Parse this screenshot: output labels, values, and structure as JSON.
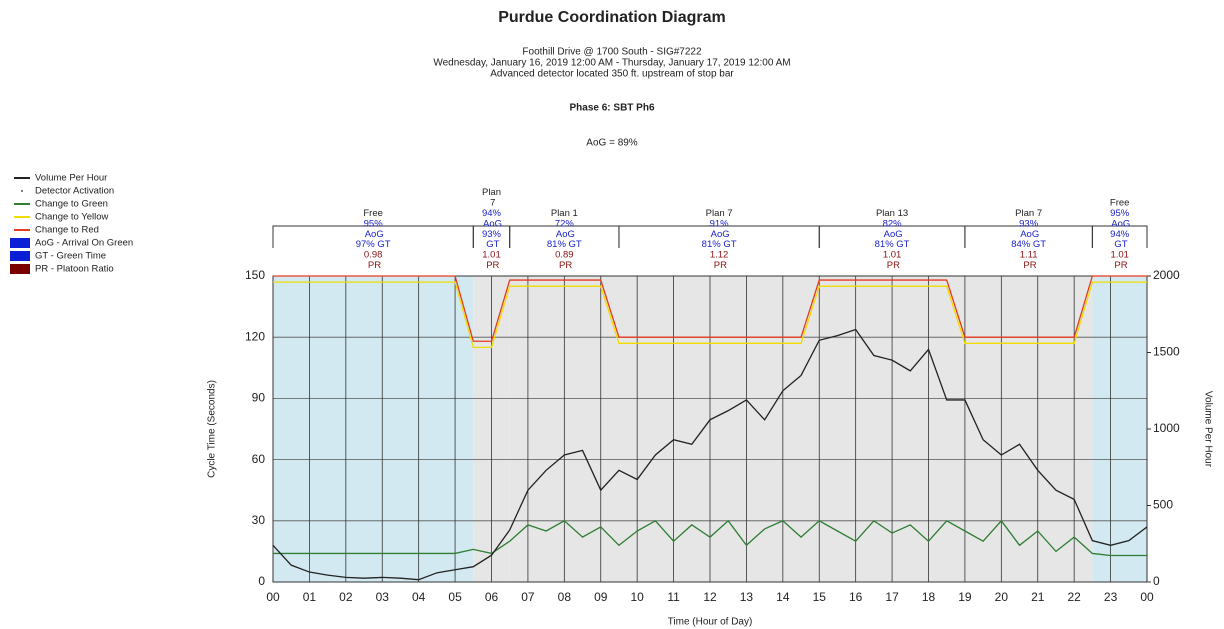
{
  "chart_data": {
    "type": "line",
    "title": "Purdue Coordination Diagram",
    "subtitle": [
      "Foothill Drive @ 1700 South - SIG#7222",
      "Wednesday, January 16, 2019 12:00 AM - Thursday, January 17, 2019 12:00 AM",
      "Advanced detector located 350 ft. upstream of stop bar"
    ],
    "phase": "Phase 6: SBT Ph6",
    "summary": "AoG = 89%",
    "xlabel": "Time (Hour of Day)",
    "ylabel": "Cycle Time (Seconds)",
    "y2label": "Volume Per Hour",
    "xlim": [
      0,
      24
    ],
    "xticks": [
      {
        "value": 0,
        "label": "00"
      },
      {
        "value": 1,
        "label": "01"
      },
      {
        "value": 2,
        "label": "02"
      },
      {
        "value": 3,
        "label": "03"
      },
      {
        "value": 4,
        "label": "04"
      },
      {
        "value": 5,
        "label": "05"
      },
      {
        "value": 6,
        "label": "06"
      },
      {
        "value": 7,
        "label": "07"
      },
      {
        "value": 8,
        "label": "08"
      },
      {
        "value": 9,
        "label": "09"
      },
      {
        "value": 10,
        "label": "10"
      },
      {
        "value": 11,
        "label": "11"
      },
      {
        "value": 12,
        "label": "12"
      },
      {
        "value": 13,
        "label": "13"
      },
      {
        "value": 14,
        "label": "14"
      },
      {
        "value": 15,
        "label": "15"
      },
      {
        "value": 16,
        "label": "16"
      },
      {
        "value": 17,
        "label": "17"
      },
      {
        "value": 18,
        "label": "18"
      },
      {
        "value": 19,
        "label": "19"
      },
      {
        "value": 20,
        "label": "20"
      },
      {
        "value": 21,
        "label": "21"
      },
      {
        "value": 22,
        "label": "22"
      },
      {
        "value": 23,
        "label": "23"
      },
      {
        "value": 24,
        "label": "00"
      }
    ],
    "ylim": [
      0,
      150
    ],
    "yticks": [
      0,
      30,
      60,
      90,
      120,
      150
    ],
    "y2lim": [
      0,
      2000
    ],
    "y2ticks": [
      0,
      500,
      1000,
      1500,
      2000
    ],
    "grid": true,
    "x": [
      0,
      0.5,
      1,
      1.5,
      2,
      2.5,
      3,
      3.5,
      4,
      4.5,
      5,
      5.5,
      6,
      6.5,
      7,
      7.5,
      8,
      8.5,
      9,
      9.5,
      10,
      10.5,
      11,
      11.5,
      12,
      12.5,
      13,
      13.5,
      14,
      14.5,
      15,
      15.5,
      16,
      16.5,
      17,
      17.5,
      18,
      18.5,
      19,
      19.5,
      20,
      20.5,
      21,
      21.5,
      22,
      22.5,
      23,
      23.5,
      24
    ],
    "series": [
      {
        "name": "Volume Per Hour",
        "color": "#222222",
        "axis": "y2",
        "values": [
          240,
          110,
          65,
          45,
          30,
          25,
          30,
          25,
          15,
          60,
          80,
          100,
          175,
          340,
          600,
          730,
          830,
          860,
          600,
          730,
          670,
          830,
          930,
          900,
          1060,
          1120,
          1190,
          1060,
          1250,
          1350,
          1580,
          1610,
          1650,
          1480,
          1450,
          1380,
          1520,
          1190,
          1190,
          930,
          830,
          900,
          730,
          600,
          540,
          270,
          240,
          270,
          360
        ]
      },
      {
        "name": "Change to Green",
        "color": "#2e7d32",
        "values": [
          14,
          14,
          14,
          14,
          14,
          14,
          14,
          14,
          14,
          14,
          14,
          16,
          14,
          20,
          28,
          25,
          30,
          22,
          27,
          18,
          25,
          30,
          20,
          28,
          22,
          30,
          18,
          26,
          30,
          22,
          30,
          25,
          20,
          30,
          24,
          28,
          20,
          30,
          25,
          20,
          30,
          18,
          25,
          15,
          22,
          14,
          13,
          13,
          13
        ]
      },
      {
        "name": "Change to Yellow",
        "color": "#f0dc00",
        "values": [
          147,
          147,
          147,
          147,
          147,
          147,
          147,
          147,
          147,
          147,
          147,
          115,
          115,
          145,
          145,
          145,
          145,
          145,
          145,
          117,
          117,
          117,
          117,
          117,
          117,
          117,
          117,
          117,
          117,
          117,
          145,
          145,
          145,
          145,
          145,
          145,
          145,
          145,
          117,
          117,
          117,
          117,
          117,
          117,
          117,
          147,
          147,
          147,
          147
        ]
      },
      {
        "name": "Change to Red",
        "color": "#e53b1f",
        "values": [
          150,
          150,
          150,
          150,
          150,
          150,
          150,
          150,
          150,
          150,
          150,
          118,
          118,
          148,
          148,
          148,
          148,
          148,
          148,
          120,
          120,
          120,
          120,
          120,
          120,
          120,
          120,
          120,
          120,
          120,
          148,
          148,
          148,
          148,
          148,
          148,
          148,
          148,
          120,
          120,
          120,
          120,
          120,
          120,
          120,
          150,
          150,
          150,
          150
        ]
      }
    ],
    "legend_extra": [
      {
        "name": "Detector Activation",
        "color": "#555555"
      },
      {
        "name": "AoG - Arrival On Green",
        "color": "#0a1fd6"
      },
      {
        "name": "GT - Green Time",
        "color": "#0a1fd6"
      },
      {
        "name": "PR - Platoon Ratio",
        "color": "#7a0000"
      }
    ],
    "plans": [
      {
        "name": "Free",
        "start": 0,
        "end": 5.5,
        "aog": "95% AoG",
        "gt": "97% GT",
        "pr": "0.98 PR"
      },
      {
        "name": "Plan 7",
        "start": 5.5,
        "end": 6.5,
        "aog": "94% AoG",
        "gt": "93% GT",
        "pr": "1.01 PR"
      },
      {
        "name": "Plan 1",
        "start": 6.5,
        "end": 9.5,
        "aog": "72% AoG",
        "gt": "81% GT",
        "pr": "0.89 PR"
      },
      {
        "name": "Plan 7",
        "start": 9.5,
        "end": 15,
        "aog": "91% AoG",
        "gt": "81% GT",
        "pr": "1.12 PR"
      },
      {
        "name": "Plan 13",
        "start": 15,
        "end": 19,
        "aog": "82% AoG",
        "gt": "81% GT",
        "pr": "1.01 PR"
      },
      {
        "name": "Plan 7",
        "start": 19,
        "end": 22.5,
        "aog": "93% AoG",
        "gt": "84% GT",
        "pr": "1.11 PR"
      },
      {
        "name": "Free",
        "start": 22.5,
        "end": 24,
        "aog": "95% AoG",
        "gt": "94% GT",
        "pr": "1.01 PR"
      }
    ]
  }
}
